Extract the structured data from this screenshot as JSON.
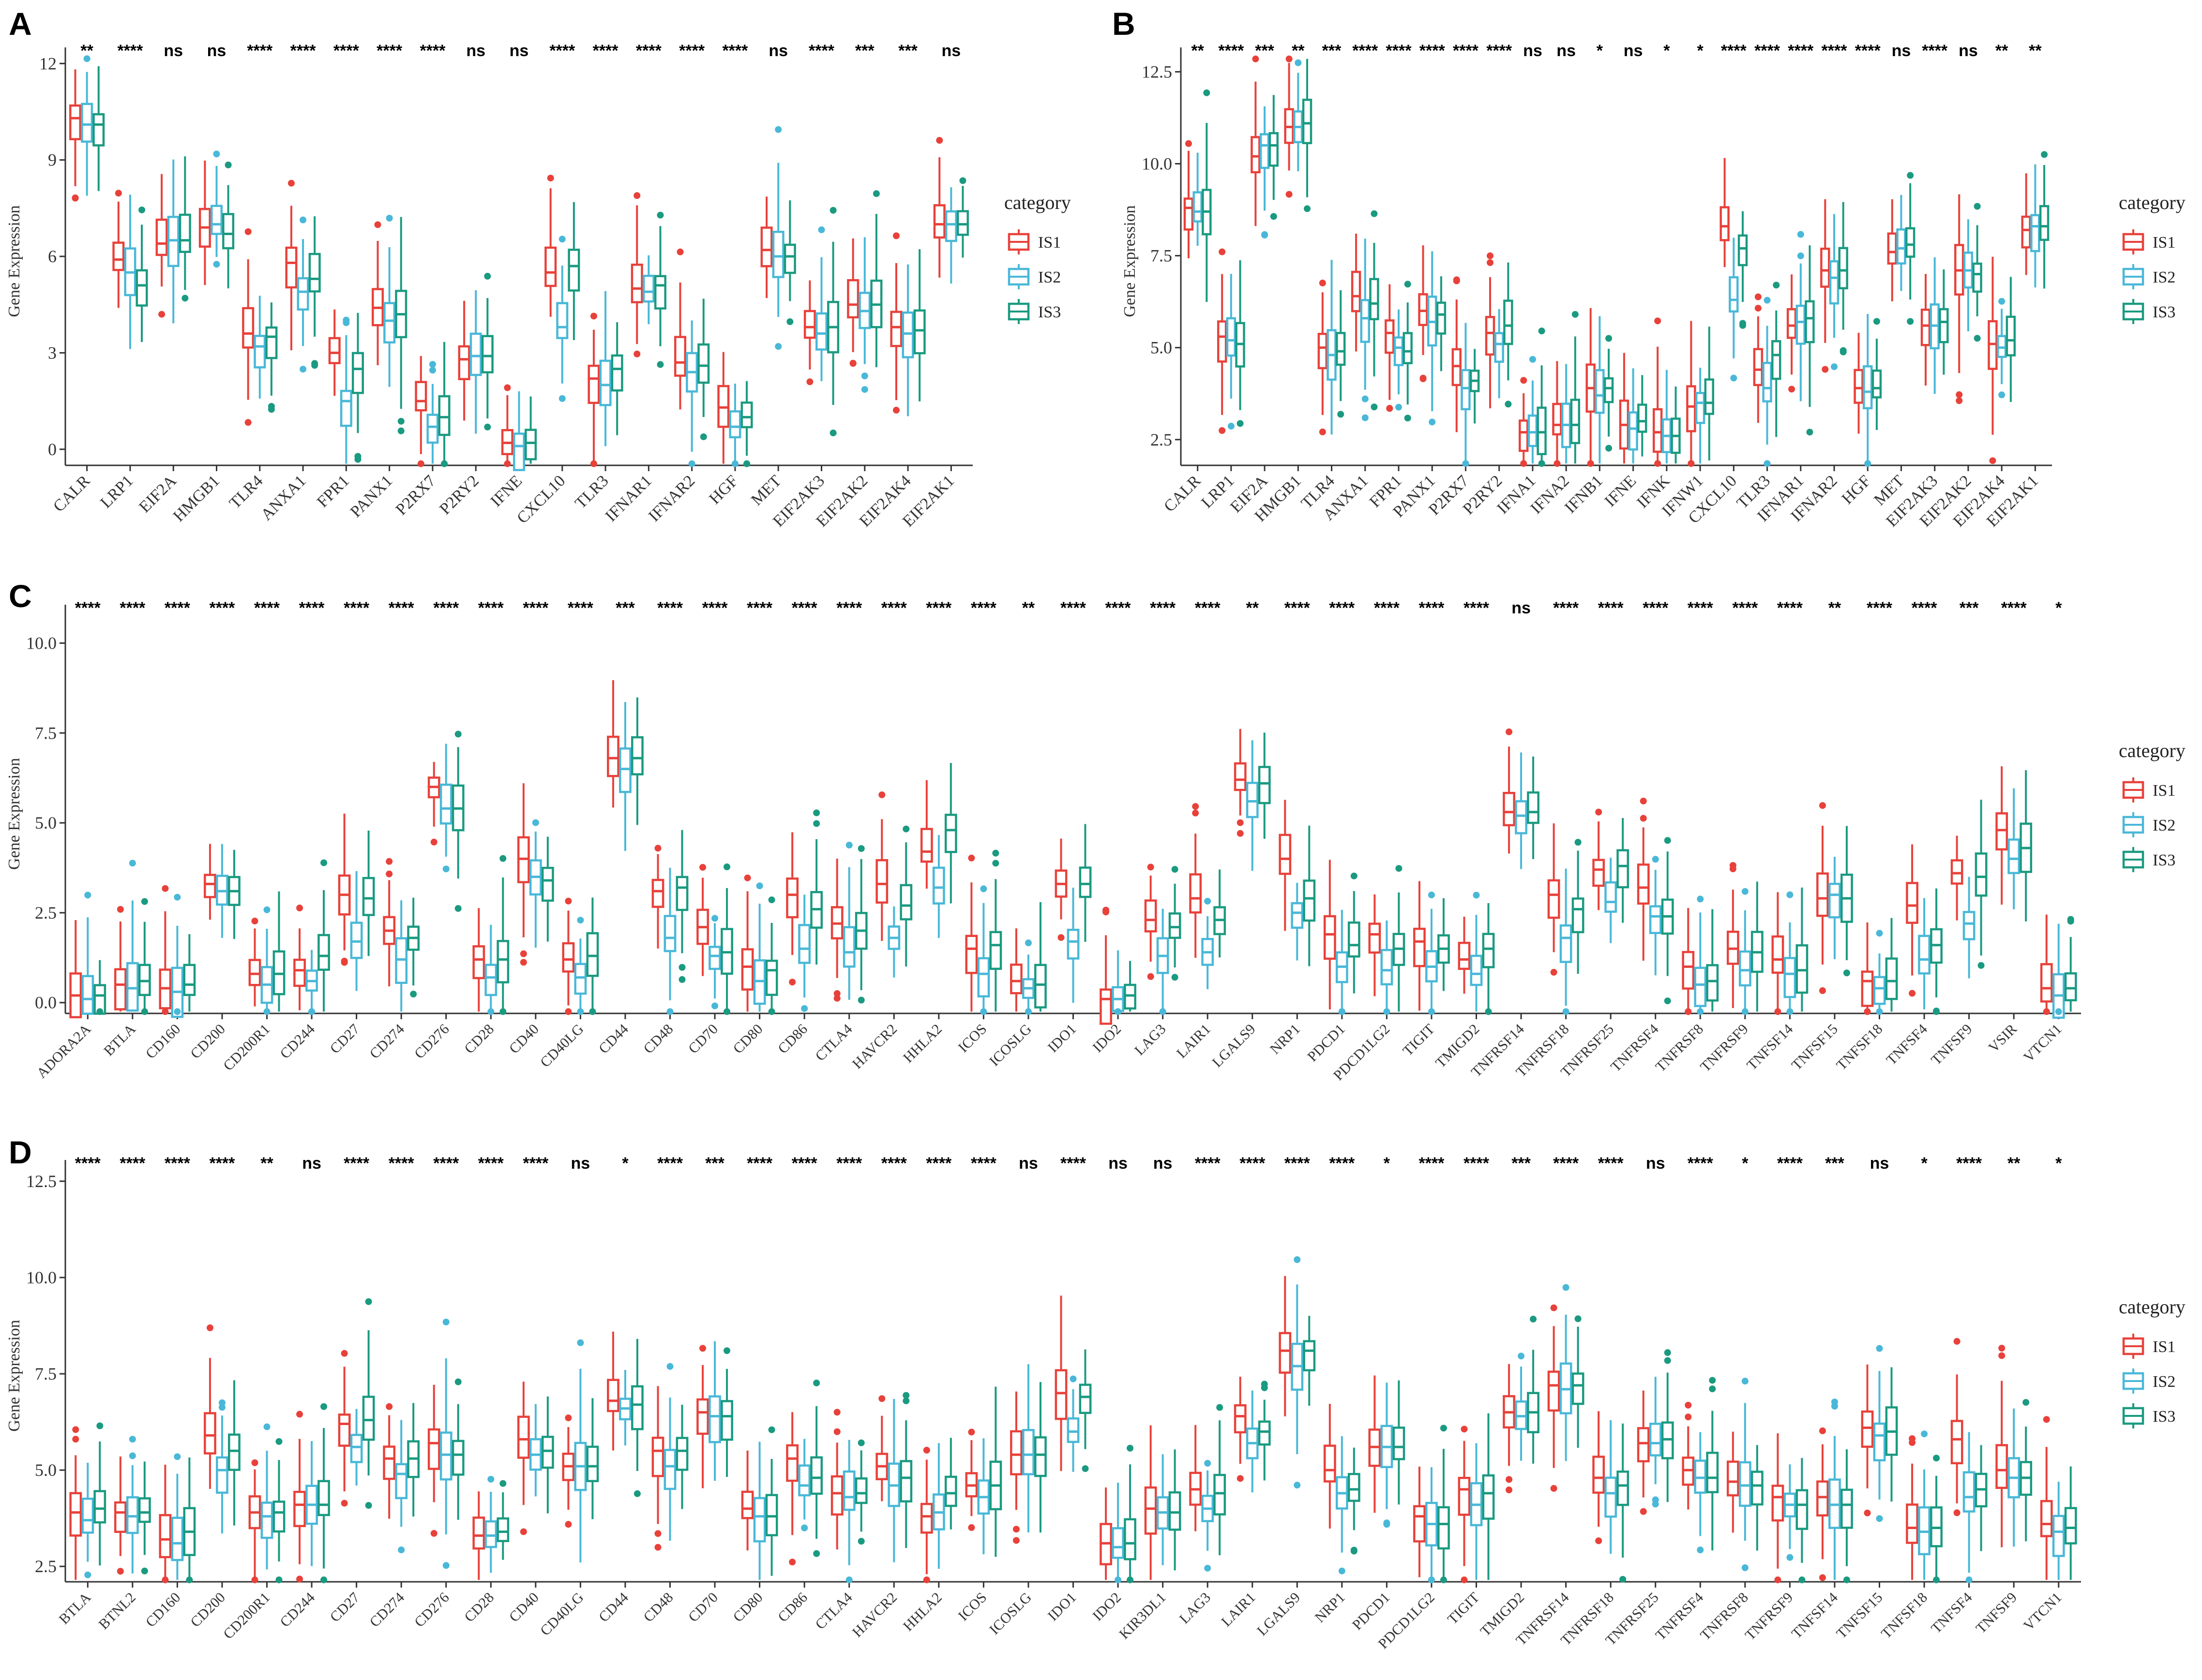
{
  "figure": {
    "colors": {
      "IS1": "#E8413A",
      "IS2": "#49B8D8",
      "IS3": "#1A9A80",
      "axis": "#333333"
    }
  },
  "chart_data": [
    {
      "id": "A",
      "type": "boxplot",
      "panel_label": "A",
      "ylabel": "Gene Expression",
      "ylim": [
        -0.5,
        12.2
      ],
      "yticks": [
        0,
        3,
        6,
        9,
        12
      ],
      "legend": {
        "title": "category",
        "entries": [
          "IS1",
          "IS2",
          "IS3"
        ],
        "placement": "right"
      },
      "categories": [
        "CALR",
        "LRP1",
        "EIF2A",
        "HMGB1",
        "TLR4",
        "ANXA1",
        "FPR1",
        "PANX1",
        "P2RX7",
        "P2RY2",
        "IFNE",
        "CXCL10",
        "TLR3",
        "IFNAR1",
        "IFNAR2",
        "HGF",
        "MET",
        "EIF2AK3",
        "EIF2AK2",
        "EIF2AK4",
        "EIF2AK1"
      ],
      "significance": [
        "**",
        "****",
        "ns",
        "ns",
        "****",
        "****",
        "****",
        "****",
        "****",
        "ns",
        "ns",
        "****",
        "****",
        "****",
        "****",
        "****",
        "ns",
        "****",
        "***",
        "***",
        "ns"
      ],
      "groups": {
        "IS1": [
          10.3,
          5.9,
          6.4,
          6.9,
          3.6,
          5.8,
          3.0,
          4.4,
          1.5,
          2.8,
          0.2,
          5.5,
          2.2,
          5.0,
          2.7,
          1.3,
          6.2,
          3.8,
          4.5,
          3.8,
          7.0
        ],
        "IS2": [
          10.1,
          5.5,
          6.5,
          7.0,
          3.2,
          4.9,
          1.5,
          4.0,
          0.7,
          2.9,
          0.1,
          3.8,
          2.0,
          4.9,
          2.4,
          0.7,
          6.0,
          3.6,
          4.3,
          3.6,
          7.0
        ],
        "IS3": [
          10.1,
          5.1,
          6.5,
          6.7,
          3.5,
          5.3,
          2.5,
          4.2,
          1.0,
          2.9,
          0.2,
          5.7,
          2.5,
          5.1,
          2.6,
          1.0,
          6.0,
          3.8,
          4.5,
          3.7,
          7.0
        ]
      }
    },
    {
      "id": "B",
      "type": "boxplot",
      "panel_label": "B",
      "ylabel": "Gene Expression",
      "ylim": [
        1.8,
        12.9
      ],
      "yticks": [
        2.5,
        5.0,
        7.5,
        10.0,
        12.5
      ],
      "legend": {
        "title": "category",
        "entries": [
          "IS1",
          "IS2",
          "IS3"
        ],
        "placement": "right"
      },
      "categories": [
        "CALR",
        "LRP1",
        "EIF2A",
        "HMGB1",
        "TLR4",
        "ANXA1",
        "FPR1",
        "PANX1",
        "P2RX7",
        "P2RY2",
        "IFNA1",
        "IFNA2",
        "IFNB1",
        "IFNE",
        "IFNK",
        "IFNW1",
        "CXCL10",
        "TLR3",
        "IFNAR1",
        "IFNAR2",
        "HGF",
        "MET",
        "EIF2AK3",
        "EIF2AK2",
        "EIF2AK4",
        "EIF2AK1"
      ],
      "significance": [
        "**",
        "****",
        "***",
        "**",
        "***",
        "****",
        "****",
        "****",
        "****",
        "****",
        "ns",
        "ns",
        "*",
        "ns",
        "*",
        "*",
        "****",
        "****",
        "****",
        "****",
        "****",
        "ns",
        "****",
        "ns",
        "**",
        "**"
      ],
      "groups": {
        "IS1": [
          8.8,
          5.3,
          10.2,
          11.0,
          5.0,
          6.4,
          5.4,
          6.0,
          4.5,
          5.4,
          2.7,
          2.9,
          3.9,
          2.9,
          2.7,
          3.4,
          8.3,
          4.4,
          5.6,
          7.1,
          3.9,
          7.6,
          5.6,
          7.1,
          5.1,
          8.2
        ],
        "IS2": [
          8.7,
          5.2,
          10.5,
          11.0,
          4.8,
          5.8,
          5.0,
          5.7,
          3.9,
          5.1,
          2.7,
          2.9,
          3.7,
          2.8,
          2.6,
          3.5,
          6.3,
          3.9,
          5.7,
          6.9,
          3.8,
          7.7,
          5.6,
          7.1,
          5.0,
          8.3
        ],
        "IS3": [
          8.7,
          5.1,
          10.5,
          11.1,
          4.9,
          6.2,
          4.9,
          5.9,
          4.1,
          5.6,
          2.7,
          2.9,
          3.9,
          3.0,
          2.6,
          3.5,
          7.7,
          4.8,
          5.8,
          7.1,
          3.9,
          7.8,
          5.7,
          7.0,
          5.2,
          8.3
        ]
      }
    },
    {
      "id": "C",
      "type": "boxplot",
      "panel_label": "C",
      "ylabel": "Gene Expression",
      "ylim": [
        -0.3,
        10.8
      ],
      "yticks": [
        0.0,
        2.5,
        5.0,
        7.5,
        10.0
      ],
      "legend": {
        "title": "category",
        "entries": [
          "IS1",
          "IS2",
          "IS3"
        ],
        "placement": "right"
      },
      "categories": [
        "ADORA2A",
        "BTLA",
        "CD160",
        "CD200",
        "CD200R1",
        "CD244",
        "CD27",
        "CD274",
        "CD276",
        "CD28",
        "CD40",
        "CD40LG",
        "CD44",
        "CD48",
        "CD70",
        "CD80",
        "CD86",
        "CTLA4",
        "HAVCR2",
        "HHLA2",
        "ICOS",
        "ICOSLG",
        "IDO1",
        "IDO2",
        "LAG3",
        "LAIR1",
        "LGALS9",
        "NRP1",
        "PDCD1",
        "PDCD1LG2",
        "TIGIT",
        "TMIGD2",
        "TNFRSF14",
        "TNFRSF18",
        "TNFRSF25",
        "TNFRSF4",
        "TNFRSF8",
        "TNFRSF9",
        "TNFSF14",
        "TNFSF15",
        "TNFSF18",
        "TNFSF4",
        "TNFSF9",
        "VSIR",
        "VTCN1"
      ],
      "significance": [
        "****",
        "****",
        "****",
        "****",
        "****",
        "****",
        "****",
        "****",
        "****",
        "****",
        "****",
        "****",
        "***",
        "****",
        "****",
        "****",
        "****",
        "****",
        "****",
        "****",
        "****",
        "**",
        "****",
        "****",
        "****",
        "****",
        "**",
        "****",
        "****",
        "****",
        "****",
        "****",
        "ns",
        "****",
        "****",
        "****",
        "****",
        "****",
        "****",
        "**",
        "****",
        "****",
        "***",
        "****",
        "*"
      ],
      "groups": {
        "IS1": [
          0.2,
          0.5,
          0.4,
          3.3,
          0.8,
          0.9,
          3.0,
          2.0,
          6.0,
          1.2,
          4.0,
          1.2,
          6.8,
          3.1,
          2.1,
          1.0,
          3.0,
          2.2,
          3.3,
          4.2,
          1.5,
          0.6,
          3.3,
          0.1,
          2.3,
          2.9,
          6.2,
          4.0,
          1.9,
          1.9,
          1.7,
          1.2,
          5.3,
          3.0,
          3.7,
          3.2,
          1.0,
          1.5,
          1.2,
          2.9,
          0.6,
          2.7,
          3.6,
          4.8,
          0.4
        ],
        "IS2": [
          0.1,
          0.4,
          0.3,
          3.1,
          0.5,
          0.6,
          1.7,
          1.2,
          5.4,
          0.7,
          3.5,
          0.7,
          6.5,
          1.8,
          1.3,
          0.6,
          1.5,
          1.4,
          1.8,
          3.2,
          0.8,
          0.4,
          1.7,
          0.1,
          1.3,
          1.4,
          5.6,
          2.5,
          1.0,
          0.9,
          1.0,
          0.8,
          5.2,
          1.8,
          2.8,
          2.4,
          0.5,
          0.9,
          0.8,
          3.0,
          0.4,
          1.2,
          2.2,
          4.0,
          0.2
        ],
        "IS3": [
          0.2,
          0.6,
          0.5,
          3.1,
          0.8,
          1.3,
          2.9,
          1.8,
          5.4,
          1.2,
          3.4,
          1.3,
          6.8,
          3.2,
          1.4,
          0.9,
          2.6,
          2.0,
          2.7,
          4.8,
          1.6,
          0.5,
          3.3,
          0.2,
          2.1,
          2.3,
          6.1,
          2.9,
          1.6,
          1.5,
          1.5,
          1.5,
          5.3,
          2.6,
          3.8,
          2.4,
          0.6,
          1.4,
          0.9,
          2.9,
          0.6,
          1.6,
          3.5,
          4.3,
          0.4
        ]
      }
    },
    {
      "id": "D",
      "type": "boxplot",
      "panel_label": "D",
      "ylabel": "Gene Expression",
      "ylim": [
        2.1,
        12.8
      ],
      "yticks": [
        2.5,
        5.0,
        7.5,
        10.0,
        12.5
      ],
      "legend": {
        "title": "category",
        "entries": [
          "IS1",
          "IS2",
          "IS3"
        ],
        "placement": "right"
      },
      "categories": [
        "BTLA",
        "BTNL2",
        "CD160",
        "CD200",
        "CD200R1",
        "CD244",
        "CD27",
        "CD274",
        "CD276",
        "CD28",
        "CD40",
        "CD40LG",
        "CD44",
        "CD48",
        "CD70",
        "CD80",
        "CD86",
        "CTLA4",
        "HAVCR2",
        "HHLA2",
        "ICOS",
        "ICOSLG",
        "IDO1",
        "IDO2",
        "KIR3DL1",
        "LAG3",
        "LAIR1",
        "LGALS9",
        "NRP1",
        "PDCD1",
        "PDCD1LG2",
        "TIGIT",
        "TMIGD2",
        "TNFRSF14",
        "TNFRSF18",
        "TNFRSF25",
        "TNFRSF4",
        "TNFRSF8",
        "TNFRSF9",
        "TNFSF14",
        "TNFSF15",
        "TNFSF18",
        "TNFSF4",
        "TNFSF9",
        "VTCN1"
      ],
      "significance": [
        "****",
        "****",
        "****",
        "****",
        "**",
        "ns",
        "****",
        "****",
        "****",
        "****",
        "****",
        "ns",
        "*",
        "****",
        "***",
        "****",
        "****",
        "****",
        "****",
        "****",
        "****",
        "ns",
        "****",
        "ns",
        "ns",
        "****",
        "****",
        "****",
        "****",
        "*",
        "****",
        "****",
        "***",
        "****",
        "****",
        "ns",
        "****",
        "*",
        "****",
        "***",
        "ns",
        "*",
        "****",
        "**",
        "*"
      ],
      "groups": {
        "IS1": [
          3.9,
          3.9,
          3.2,
          5.9,
          3.9,
          4.1,
          6.2,
          5.3,
          5.7,
          3.3,
          5.8,
          5.1,
          6.8,
          5.5,
          6.5,
          4.0,
          5.3,
          4.4,
          5.1,
          3.8,
          4.6,
          5.4,
          7.0,
          3.1,
          4.0,
          4.5,
          6.4,
          8.1,
          5.0,
          5.6,
          3.8,
          4.5,
          6.5,
          7.2,
          4.8,
          5.7,
          5.0,
          4.7,
          4.3,
          4.3,
          6.1,
          3.5,
          5.8,
          5.0,
          3.6
        ],
        "IS2": [
          3.7,
          3.8,
          3.1,
          5.0,
          3.8,
          4.1,
          5.6,
          4.9,
          5.4,
          3.3,
          5.4,
          5.1,
          6.6,
          5.1,
          6.4,
          3.8,
          4.6,
          4.3,
          4.6,
          3.9,
          4.3,
          5.4,
          6.0,
          3.0,
          3.9,
          4.0,
          5.7,
          7.7,
          4.4,
          5.6,
          3.6,
          4.1,
          6.4,
          7.1,
          4.4,
          5.7,
          4.8,
          4.6,
          4.1,
          4.1,
          5.9,
          3.4,
          4.3,
          4.8,
          3.4
        ],
        "IS3": [
          4.0,
          3.9,
          3.4,
          5.5,
          3.9,
          4.1,
          6.3,
          5.3,
          5.4,
          3.4,
          5.5,
          5.1,
          6.7,
          5.5,
          6.4,
          3.8,
          4.8,
          4.4,
          4.8,
          4.4,
          4.6,
          5.4,
          6.9,
          3.1,
          3.9,
          4.4,
          6.0,
          8.1,
          4.5,
          5.6,
          3.6,
          4.4,
          6.5,
          7.2,
          4.6,
          5.8,
          4.8,
          4.6,
          4.1,
          4.1,
          6.0,
          3.5,
          4.5,
          4.8,
          3.5
        ]
      }
    }
  ]
}
